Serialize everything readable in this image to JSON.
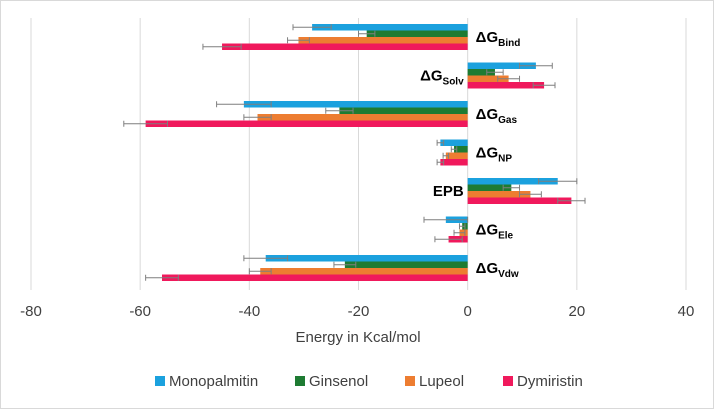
{
  "chart_data": {
    "type": "bar",
    "orientation": "horizontal",
    "title": "",
    "xlabel": "Energy in Kcal/mol",
    "ylabel": "",
    "xlim": [
      -80,
      40
    ],
    "xticks": [
      -80,
      -60,
      -40,
      -20,
      0,
      20,
      40
    ],
    "grid": true,
    "legend_position": "bottom",
    "categories": [
      {
        "main": "ΔG",
        "sub": "Bind"
      },
      {
        "main": "ΔG",
        "sub": "Solv"
      },
      {
        "main": "ΔG",
        "sub": "Gas"
      },
      {
        "main": "ΔG",
        "sub": "NP"
      },
      {
        "main": "EPB",
        "sub": ""
      },
      {
        "main": "ΔG",
        "sub": "Ele"
      },
      {
        "main": "ΔG",
        "sub": "Vdw"
      }
    ],
    "series": [
      {
        "name": "Monopalmitin",
        "color": "#1ba1de",
        "values": [
          -28.5,
          12.5,
          -41,
          -5,
          16.5,
          -4,
          -37
        ],
        "errors": [
          3.5,
          3,
          5,
          0.6,
          3.5,
          4,
          4
        ]
      },
      {
        "name": "Ginsenol",
        "color": "#1e7b32",
        "values": [
          -18.5,
          5,
          -23.5,
          -2.5,
          8,
          -1,
          -22.5
        ],
        "errors": [
          1.5,
          1.5,
          2.5,
          0.5,
          1.5,
          0.5,
          2
        ]
      },
      {
        "name": "Lupeol",
        "color": "#ed7d31",
        "values": [
          -31,
          7.5,
          -38.5,
          -4,
          11.5,
          -1.5,
          -38
        ],
        "errors": [
          2,
          2,
          2.5,
          0.5,
          2,
          1,
          2
        ]
      },
      {
        "name": "Dymiristin",
        "color": "#f0195c",
        "values": [
          -45,
          14,
          -59,
          -5,
          19,
          -3.5,
          -56
        ],
        "errors": [
          3.5,
          2,
          4,
          0.6,
          2.5,
          2.5,
          3
        ]
      }
    ]
  }
}
